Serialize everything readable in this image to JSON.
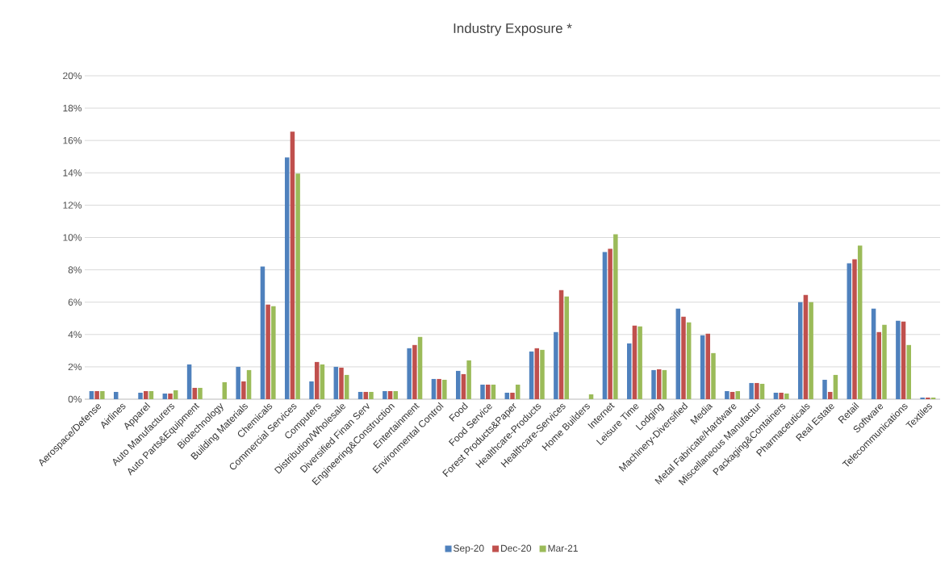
{
  "chart_data": {
    "type": "bar",
    "title": "Industry Exposure *",
    "categories": [
      "Aerospace/Defense",
      "Airlines",
      "Apparel",
      "Auto Manufacturers",
      "Auto Parts&Equipment",
      "Biotechnology",
      "Building Materials",
      "Chemicals",
      "Commercial Services",
      "Computers",
      "Distribution/Wholesale",
      "Diversified Finan Serv",
      "Engineering&Construction",
      "Entertainment",
      "Environmental Control",
      "Food",
      "Food Service",
      "Forest Products&Paper",
      "Healthcare-Products",
      "Healthcare-Services",
      "Home Builders",
      "Internet",
      "Leisure Time",
      "Lodging",
      "Machinery-Diversified",
      "Media",
      "Metal Fabricate/Hardware",
      "Miscellaneous Manufactur",
      "Packaging&Containers",
      "Pharmaceuticals",
      "Real Estate",
      "Retail",
      "Software",
      "Telecommunications",
      "Textiles"
    ],
    "series": [
      {
        "name": "Sep-20",
        "color": "#4f81bd",
        "values": [
          0.5,
          0.45,
          0.4,
          0.35,
          2.15,
          null,
          2.0,
          8.2,
          14.95,
          1.1,
          2.0,
          0.45,
          0.5,
          3.15,
          1.25,
          1.75,
          0.9,
          0.4,
          2.95,
          4.15,
          null,
          9.1,
          3.45,
          1.8,
          5.6,
          3.95,
          0.5,
          1.0,
          0.4,
          6.0,
          1.2,
          8.4,
          5.6,
          4.85,
          0.1
        ]
      },
      {
        "name": "Dec-20",
        "color": "#c0504d",
        "values": [
          0.5,
          null,
          0.5,
          0.35,
          0.7,
          null,
          1.1,
          5.85,
          16.55,
          2.3,
          1.95,
          0.45,
          0.5,
          3.35,
          1.25,
          1.55,
          0.9,
          0.4,
          3.15,
          6.75,
          null,
          9.3,
          4.55,
          1.85,
          5.1,
          4.05,
          0.45,
          1.0,
          0.4,
          6.45,
          0.45,
          8.65,
          4.15,
          4.8,
          0.1
        ]
      },
      {
        "name": "Mar-21",
        "color": "#9bbb59",
        "values": [
          0.5,
          null,
          0.5,
          0.55,
          0.7,
          1.05,
          1.8,
          5.75,
          13.95,
          2.15,
          1.5,
          0.45,
          0.5,
          3.85,
          1.2,
          2.4,
          0.9,
          0.9,
          3.05,
          6.35,
          0.3,
          10.2,
          4.5,
          1.8,
          4.75,
          2.85,
          0.5,
          0.95,
          0.35,
          6.0,
          1.5,
          9.5,
          4.6,
          3.35,
          0.1
        ]
      }
    ],
    "ylim": [
      0,
      20
    ],
    "yticks": [
      {
        "value": 0,
        "label": "0%"
      },
      {
        "value": 2,
        "label": "2%"
      },
      {
        "value": 4,
        "label": "4%"
      },
      {
        "value": 6,
        "label": "6%"
      },
      {
        "value": 8,
        "label": "8%"
      },
      {
        "value": 10,
        "label": "10%"
      },
      {
        "value": 12,
        "label": "12%"
      },
      {
        "value": 14,
        "label": "14%"
      },
      {
        "value": 16,
        "label": "16%"
      },
      {
        "value": 18,
        "label": "18%"
      },
      {
        "value": 20,
        "label": "20%"
      }
    ],
    "grid": "y",
    "legend": "bottom"
  }
}
